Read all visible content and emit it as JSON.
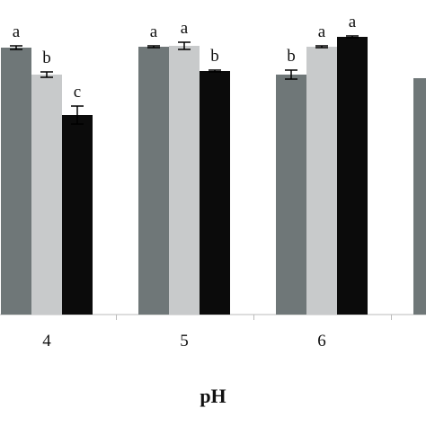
{
  "chart_data": {
    "type": "bar",
    "x_label": "pH",
    "categories": [
      "4",
      "5",
      "6",
      null
    ],
    "series": [
      {
        "color": "#6f7778",
        "values": [
          297,
          298,
          267,
          263
        ],
        "errors": [
          2,
          1,
          5,
          null
        ],
        "letters": [
          "a",
          "a",
          "b",
          null
        ]
      },
      {
        "color": "#c8cacb",
        "values": [
          267,
          299,
          298,
          null
        ],
        "errors": [
          3,
          4,
          1,
          null
        ],
        "letters": [
          "b",
          "a",
          "a",
          null
        ]
      },
      {
        "color": "#0b0b0b",
        "values": [
          222,
          271,
          309,
          null
        ],
        "errors": [
          10,
          1,
          1,
          null
        ],
        "letters": [
          "c",
          "b",
          "a",
          null
        ]
      }
    ],
    "ylim": [
      0,
      350
    ]
  }
}
